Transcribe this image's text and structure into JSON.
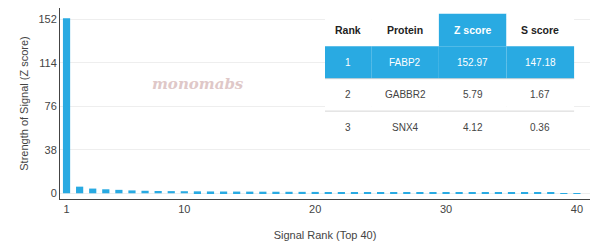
{
  "chart_data": {
    "type": "bar",
    "xlabel": "Signal Rank (Top 40)",
    "ylabel": "Strength of Signal (Z score)",
    "x": [
      1,
      2,
      3,
      4,
      5,
      6,
      7,
      8,
      9,
      10,
      11,
      12,
      13,
      14,
      15,
      16,
      17,
      18,
      19,
      20,
      21,
      22,
      23,
      24,
      25,
      26,
      27,
      28,
      29,
      30,
      31,
      32,
      33,
      34,
      35,
      36,
      37,
      38,
      39,
      40
    ],
    "values": [
      152.97,
      5.79,
      4.12,
      3.5,
      3.0,
      2.5,
      2.2,
      2.0,
      1.9,
      1.8,
      1.7,
      1.6,
      1.55,
      1.5,
      1.45,
      1.4,
      1.35,
      1.3,
      1.25,
      1.2,
      1.15,
      1.1,
      1.05,
      1.0,
      0.95,
      0.9,
      0.85,
      0.8,
      0.75,
      0.7,
      0.65,
      0.6,
      0.55,
      0.5,
      0.45,
      0.4,
      0.35,
      0.3,
      0.25,
      0.2
    ],
    "color": "#29aae2",
    "xlim": [
      0.5,
      41
    ],
    "xticks": [
      1,
      10,
      20,
      30,
      40
    ],
    "ylim": [
      -5,
      162
    ],
    "yticks": [
      0,
      38,
      76,
      114,
      152
    ],
    "grid": true,
    "annotations": [
      {
        "text": "monomabs",
        "color": "#dfc8c8"
      }
    ],
    "table": [
      [
        "Rank",
        "Protein",
        "Z score",
        "S score"
      ],
      [
        "1",
        "FABP2",
        "152.97",
        "147.18"
      ],
      [
        "2",
        "GABBR2",
        "5.79",
        "1.67"
      ],
      [
        "3",
        "SNX4",
        "4.12",
        "0.36"
      ]
    ]
  }
}
